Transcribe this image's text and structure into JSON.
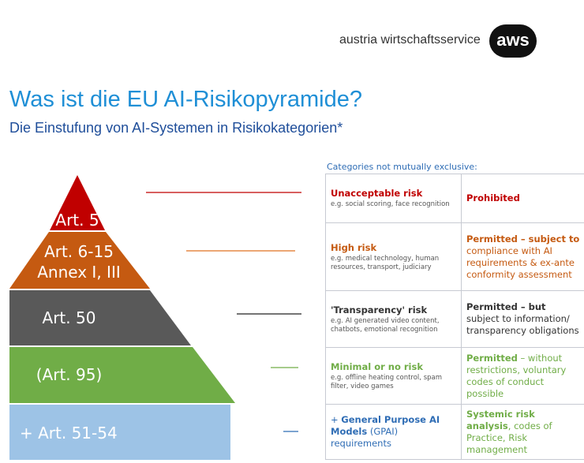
{
  "logo": {
    "text": "austria wirtschaftsservice",
    "badge": "aws"
  },
  "title": "Was ist die EU AI-Risikopyramide?",
  "subtitle": "Die Einstufung von AI-Systemen in Risikokategorien*",
  "categories_note": "Categories not mutually exclusive:",
  "colors": {
    "unacceptable": "#c00000",
    "high": "#c55a11",
    "transparency": "#595959",
    "minimal": "#70ad47",
    "gpai": "#9dc3e6",
    "title": "#1f8fd6"
  },
  "pyramid": [
    {
      "label": "Art. 5"
    },
    {
      "label_1": "Art. 6-15",
      "label_2": "Annex I, III"
    },
    {
      "label": "Art. 50"
    },
    {
      "label": "(Art. 95)"
    },
    {
      "label": "+ Art. 51-54"
    }
  ],
  "rows": [
    {
      "title": "Unacceptable risk",
      "example": "e.g. social scoring, face recognition",
      "c2_a": "Prohibited",
      "c2_b": ""
    },
    {
      "title": "High risk",
      "example": "e.g. medical technology, human resources, transport, judiciary",
      "c2_a": "Permitted",
      "c2_b": " – subject to",
      "c2_c": "compliance with AI requirements & ex-ante conformity assessment"
    },
    {
      "title": "'Transparency' risk",
      "example": "e.g. AI generated video content, chatbots, emotional recognition",
      "c2_a": "Permitted",
      "c2_b": " – but",
      "c2_c": " subject to information/ transparency obligations"
    },
    {
      "title": "Minimal or no risk",
      "example": "e.g. offline heating control, spam filter, video games",
      "c2_a": "Permitted",
      "c2_b": " – without restrictions, voluntary codes of conduct possible"
    },
    {
      "title_pre": "+ ",
      "title_bold": "General Purpose AI Models",
      "title_post": " (GPAI) requirements",
      "c2_a": "Systemic risk analysis",
      "c2_b": ", codes of Practice, Risk management"
    }
  ]
}
